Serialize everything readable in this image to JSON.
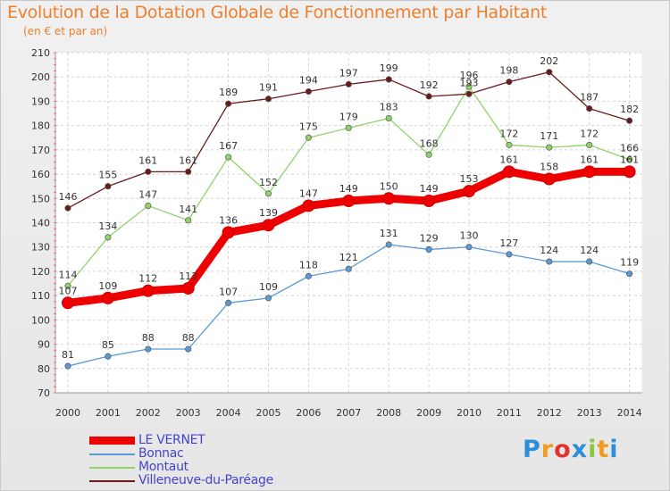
{
  "title": "Evolution de la Dotation Globale de Fonctionnement par Habitant",
  "subtitle": "(en € et par an)",
  "brand": {
    "letters": [
      "P",
      "r",
      "o",
      "x",
      "i",
      "t",
      "i"
    ],
    "colors": [
      "#2e8fd8",
      "#f29c1f",
      "#e0332c",
      "#2e8fd8",
      "#8dc63f",
      "#f29c1f",
      "#2e8fd8"
    ]
  },
  "chart_data": {
    "type": "line",
    "title": "Evolution de la Dotation Globale de Fonctionnement par Habitant",
    "subtitle": "(en € et par an)",
    "xlabel": "",
    "ylabel": "",
    "ylim": [
      70,
      210
    ],
    "yticks": [
      70,
      80,
      90,
      100,
      110,
      120,
      130,
      140,
      150,
      160,
      170,
      180,
      190,
      200,
      210
    ],
    "grid": true,
    "categories": [
      "2000",
      "2001",
      "2002",
      "2003",
      "2004",
      "2005",
      "2006",
      "2007",
      "2008",
      "2009",
      "2010",
      "2011",
      "2012",
      "2013",
      "2014"
    ],
    "series": [
      {
        "name": "LE VERNET",
        "color": "#ee0000",
        "emphasis": true,
        "values": [
          107,
          109,
          112,
          113,
          136,
          139,
          147,
          149,
          150,
          149,
          153,
          161,
          158,
          161,
          161
        ]
      },
      {
        "name": "Bonnac",
        "color": "#5b9bd5",
        "emphasis": false,
        "values": [
          81,
          85,
          88,
          88,
          107,
          109,
          118,
          121,
          131,
          129,
          130,
          127,
          124,
          124,
          119
        ]
      },
      {
        "name": "Montaut",
        "color": "#8fd36a",
        "emphasis": false,
        "values": [
          114,
          134,
          147,
          141,
          167,
          152,
          175,
          179,
          183,
          168,
          196,
          172,
          171,
          172,
          166
        ]
      },
      {
        "name": "Villeneuve-du-Paréage",
        "color": "#6b1a1a",
        "emphasis": false,
        "values": [
          146,
          155,
          161,
          161,
          189,
          191,
          194,
          197,
          199,
          192,
          193,
          198,
          202,
          187,
          182
        ]
      }
    ],
    "legend": "bottom-left"
  }
}
